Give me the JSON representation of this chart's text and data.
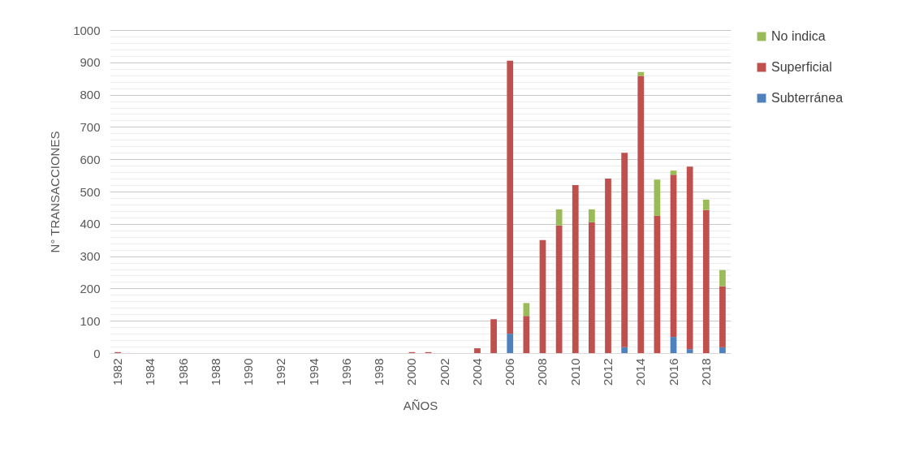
{
  "chart_data": {
    "type": "bar",
    "xlabel": "AÑOS",
    "ylabel": "N° TRANSACCIONES",
    "stacked": true,
    "legend": "right",
    "grid": "y",
    "categories": [
      "1982",
      null,
      "1984",
      null,
      "1986",
      null,
      "1988",
      null,
      "1990",
      null,
      "1992",
      null,
      "1994",
      null,
      "1996",
      null,
      "1998",
      null,
      "2000",
      null,
      "2002",
      null,
      "2004",
      null,
      "2006",
      null,
      "2008",
      null,
      "2010",
      null,
      "2012",
      null,
      "2014",
      null,
      "2016",
      null,
      "2018",
      null
    ],
    "ylim": [
      0,
      1000
    ],
    "yticks": [
      0,
      {
        "value": 20,
        "label": null
      },
      {
        "value": 40,
        "label": null
      },
      {
        "value": 60,
        "label": null
      },
      {
        "value": 80,
        "label": null
      },
      100,
      {
        "value": 120,
        "label": null
      },
      {
        "value": 140,
        "label": null
      },
      {
        "value": 160,
        "label": null
      },
      {
        "value": 180,
        "label": null
      },
      200,
      {
        "value": 220,
        "label": null
      },
      {
        "value": 240,
        "label": null
      },
      {
        "value": 260,
        "label": null
      },
      {
        "value": 280,
        "label": null
      },
      300,
      {
        "value": 320,
        "label": null
      },
      {
        "value": 340,
        "label": null
      },
      {
        "value": 360,
        "label": null
      },
      {
        "value": 380,
        "label": null
      },
      400,
      {
        "value": 420,
        "label": null
      },
      {
        "value": 440,
        "label": null
      },
      {
        "value": 460,
        "label": null
      },
      {
        "value": 480,
        "label": null
      },
      500,
      {
        "value": 520,
        "label": null
      },
      {
        "value": 540,
        "label": null
      },
      {
        "value": 560,
        "label": null
      },
      {
        "value": 580,
        "label": null
      },
      600,
      {
        "value": 620,
        "label": null
      },
      {
        "value": 640,
        "label": null
      },
      {
        "value": 660,
        "label": null
      },
      {
        "value": 680,
        "label": null
      },
      700,
      {
        "value": 720,
        "label": null
      },
      {
        "value": 740,
        "label": null
      },
      {
        "value": 760,
        "label": null
      },
      {
        "value": 780,
        "label": null
      },
      800,
      {
        "value": 820,
        "label": null
      },
      {
        "value": 840,
        "label": null
      },
      {
        "value": 860,
        "label": null
      },
      {
        "value": 880,
        "label": null
      },
      900,
      {
        "value": 920,
        "label": null
      },
      {
        "value": 940,
        "label": null
      },
      {
        "value": 960,
        "label": null
      },
      {
        "value": 980,
        "label": null
      },
      1000
    ],
    "series": [
      {
        "name": "Subterránea",
        "color": "#4f81bd",
        "values": [
          null,
          null,
          null,
          null,
          null,
          null,
          null,
          null,
          null,
          null,
          null,
          null,
          null,
          null,
          null,
          null,
          null,
          null,
          null,
          null,
          null,
          null,
          null,
          null,
          60,
          null,
          null,
          null,
          null,
          null,
          null,
          18,
          null,
          null,
          50,
          12,
          null,
          18
        ]
      },
      {
        "name": "Superficial",
        "color": "#c0504d",
        "values": [
          3,
          null,
          null,
          null,
          null,
          null,
          null,
          null,
          null,
          null,
          null,
          null,
          null,
          null,
          null,
          null,
          null,
          null,
          3,
          3,
          null,
          null,
          15,
          105,
          845,
          115,
          350,
          395,
          520,
          405,
          540,
          602,
          858,
          425,
          502,
          565,
          443,
          189
        ]
      },
      {
        "name": "No indica",
        "color": "#9bbb59",
        "values": [
          null,
          null,
          null,
          null,
          null,
          null,
          null,
          null,
          null,
          null,
          null,
          null,
          null,
          null,
          null,
          null,
          null,
          null,
          null,
          null,
          null,
          null,
          null,
          null,
          null,
          40,
          null,
          50,
          null,
          40,
          null,
          null,
          12,
          112,
          13,
          null,
          32,
          50
        ]
      }
    ]
  }
}
